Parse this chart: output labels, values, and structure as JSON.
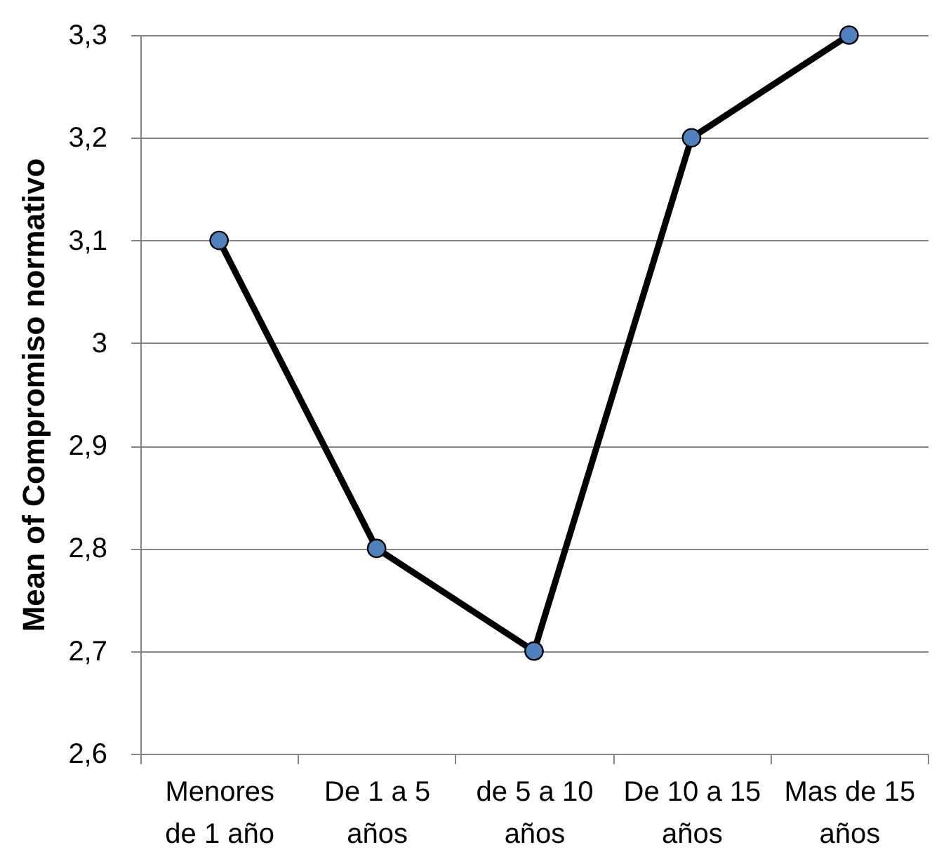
{
  "chart_data": {
    "type": "line",
    "ylabel": "Mean of Compromiso normativo",
    "categories": [
      "Menores de 1 año",
      "De 1 a 5 años",
      "de 5 a 10 años",
      "De 10 a 15 años",
      "Mas de 15 años"
    ],
    "series": [
      {
        "color": "#000000",
        "colors": [
          "#4f81bd",
          "#4f81bd",
          "#4f81bd",
          "#4f81bd",
          "#4f81bd"
        ],
        "values": [
          3.1,
          2.8,
          2.7,
          3.2,
          3.3
        ]
      }
    ],
    "ylim": [
      2.6,
      3.3
    ],
    "yticks": [
      {
        "value": 2.6,
        "label": "2,6"
      },
      {
        "value": 2.7,
        "label": "2,7"
      },
      {
        "value": 2.8,
        "label": "2,8"
      },
      {
        "value": 2.9,
        "label": "2,9"
      },
      3,
      {
        "value": 3.1,
        "label": "3,1"
      },
      {
        "value": 3.2,
        "label": "3,2"
      },
      {
        "value": 3.3,
        "label": "3,3"
      }
    ],
    "grid": "y",
    "marker": "circle",
    "line_style": "solid"
  }
}
